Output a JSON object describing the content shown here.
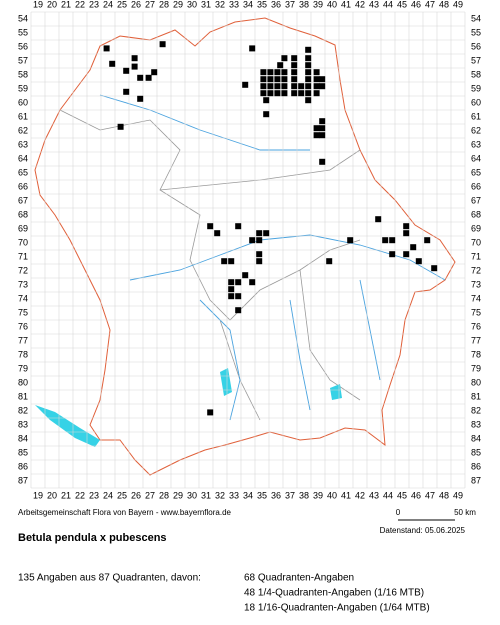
{
  "map": {
    "col_labels": [
      19,
      20,
      21,
      22,
      23,
      24,
      25,
      26,
      27,
      28,
      29,
      30,
      31,
      32,
      33,
      34,
      35,
      36,
      37,
      38,
      39,
      40,
      41,
      42,
      43,
      44,
      45,
      46,
      47,
      48,
      49
    ],
    "row_labels": [
      54,
      55,
      56,
      57,
      58,
      59,
      60,
      61,
      62,
      63,
      64,
      65,
      66,
      67,
      68,
      69,
      70,
      71,
      72,
      73,
      74,
      75,
      76,
      77,
      78,
      79,
      80,
      81,
      82,
      83,
      84,
      85,
      86,
      87
    ],
    "points": [
      [
        23.9,
        56.1
      ],
      [
        24.3,
        57.2
      ],
      [
        25.9,
        56.8
      ],
      [
        25.9,
        57.4
      ],
      [
        27.9,
        55.8
      ],
      [
        25.3,
        57.7
      ],
      [
        26.3,
        58.2
      ],
      [
        26.9,
        58.2
      ],
      [
        27.3,
        57.8
      ],
      [
        25.3,
        59.2
      ],
      [
        26.3,
        59.7
      ],
      [
        24.9,
        61.7
      ],
      [
        34.3,
        56.1
      ],
      [
        38.3,
        56.2
      ],
      [
        35.1,
        57.8
      ],
      [
        35.6,
        57.8
      ],
      [
        36.1,
        57.8
      ],
      [
        36.6,
        57.8
      ],
      [
        35.1,
        58.3
      ],
      [
        35.6,
        58.3
      ],
      [
        36.1,
        58.3
      ],
      [
        36.6,
        58.3
      ],
      [
        37.3,
        56.8
      ],
      [
        37.3,
        57.3
      ],
      [
        37.3,
        57.8
      ],
      [
        37.3,
        58.3
      ],
      [
        38.3,
        56.8
      ],
      [
        38.3,
        57.3
      ],
      [
        38.3,
        57.8
      ],
      [
        38.3,
        58.3
      ],
      [
        36.3,
        57.3
      ],
      [
        36.6,
        56.8
      ],
      [
        33.8,
        58.7
      ],
      [
        35.1,
        58.8
      ],
      [
        35.6,
        58.8
      ],
      [
        36.1,
        58.8
      ],
      [
        36.6,
        58.8
      ],
      [
        37.3,
        58.8
      ],
      [
        37.8,
        58.8
      ],
      [
        38.3,
        58.8
      ],
      [
        35.1,
        59.3
      ],
      [
        35.6,
        59.3
      ],
      [
        36.1,
        59.3
      ],
      [
        36.6,
        59.3
      ],
      [
        37.3,
        59.3
      ],
      [
        37.8,
        59.3
      ],
      [
        38.3,
        59.3
      ],
      [
        35.3,
        59.8
      ],
      [
        35.3,
        60.8
      ],
      [
        39.3,
        58.3
      ],
      [
        38.9,
        57.8
      ],
      [
        38.9,
        58.3
      ],
      [
        38.9,
        58.8
      ],
      [
        38.9,
        59.3
      ],
      [
        39.3,
        58.8
      ],
      [
        38.3,
        59.8
      ],
      [
        39.3,
        61.3
      ],
      [
        38.9,
        61.8
      ],
      [
        39.3,
        61.8
      ],
      [
        38.9,
        62.3
      ],
      [
        39.3,
        62.3
      ],
      [
        39.3,
        64.2
      ],
      [
        43.3,
        68.3
      ],
      [
        43.8,
        69.8
      ],
      [
        44.3,
        69.8
      ],
      [
        44.3,
        70.8
      ],
      [
        45.3,
        68.8
      ],
      [
        45.3,
        69.3
      ],
      [
        45.8,
        70.3
      ],
      [
        45.3,
        70.8
      ],
      [
        46.2,
        71.3
      ],
      [
        46.8,
        69.8
      ],
      [
        47.3,
        71.8
      ],
      [
        41.3,
        69.8
      ],
      [
        31.3,
        68.8
      ],
      [
        33.3,
        68.8
      ],
      [
        31.8,
        69.3
      ],
      [
        34.8,
        69.3
      ],
      [
        35.3,
        69.3
      ],
      [
        34.3,
        69.8
      ],
      [
        34.8,
        69.8
      ],
      [
        34.8,
        70.8
      ],
      [
        34.8,
        71.3
      ],
      [
        32.3,
        71.3
      ],
      [
        32.8,
        71.3
      ],
      [
        33.8,
        72.3
      ],
      [
        32.8,
        72.8
      ],
      [
        33.3,
        72.8
      ],
      [
        34.3,
        72.8
      ],
      [
        32.8,
        73.3
      ],
      [
        33.3,
        73.8
      ],
      [
        32.8,
        73.8
      ],
      [
        33.3,
        74.8
      ],
      [
        31.3,
        82.1
      ],
      [
        39.8,
        71.3
      ]
    ]
  },
  "footer": {
    "credit": "Arbeitsgemeinschaft Flora von Bayern - www.bayernflora.de",
    "scale_start": "0",
    "scale_end": "50 km",
    "date": "Datenstand: 05.06.2025",
    "title": "Betula pendula x pubescens",
    "summary": "135 Angaben aus 87 Quadranten, davon:",
    "counts": [
      "68 Quadranten-Angaben",
      "48 1/4-Quadranten-Angaben (1/16 MTB)",
      "18 1/16-Quadranten-Angaben (1/64 MTB)"
    ]
  }
}
